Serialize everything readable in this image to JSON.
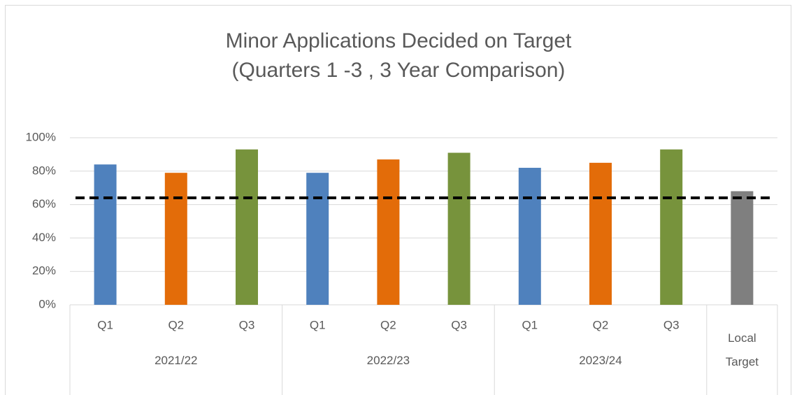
{
  "chart_data": {
    "type": "bar",
    "title": "Minor Applications Decided on Target",
    "subtitle": "(Quarters 1 -3 , 3 Year Comparison)",
    "categories": [
      "Q1",
      "Q2",
      "Q3",
      "Q1",
      "Q2",
      "Q3",
      "Q1",
      "Q2",
      "Q3",
      null
    ],
    "category_groups": [
      "2021/22",
      "2021/22",
      "2021/22",
      "2022/23",
      "2022/23",
      "2022/23",
      "2023/24",
      "2023/24",
      "2023/24",
      "Local Target"
    ],
    "values": [
      84,
      79,
      93,
      79,
      87,
      91,
      82,
      85,
      93,
      68
    ],
    "colors": [
      "#4f81bd",
      "#e36c09",
      "#77933c",
      "#4f81bd",
      "#e36c09",
      "#77933c",
      "#4f81bd",
      "#e36c09",
      "#77933c",
      "#7f7f7f"
    ],
    "reference_line": {
      "value": 64,
      "color": "#000000",
      "style": "dashed"
    },
    "ylim": [
      0,
      100
    ],
    "yticks": [
      {
        "value": 0,
        "label": "0%"
      },
      {
        "value": 20,
        "label": "20%"
      },
      {
        "value": 40,
        "label": "40%"
      },
      {
        "value": 60,
        "label": "60%"
      },
      {
        "value": 80,
        "label": "80%"
      },
      {
        "value": 100,
        "label": "100%"
      }
    ],
    "grid": true
  }
}
